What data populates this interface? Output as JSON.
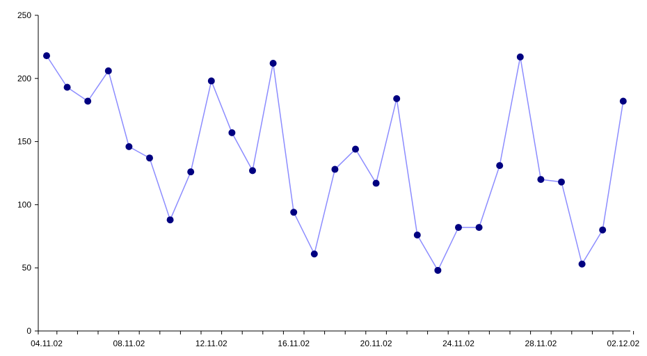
{
  "chart_data": {
    "type": "line",
    "title": "",
    "xlabel": "",
    "ylabel": "",
    "ylim": [
      0,
      250
    ],
    "yticks": [
      0,
      50,
      100,
      150,
      200,
      250
    ],
    "x": [
      "04.11.02",
      "05.11.02",
      "06.11.02",
      "07.11.02",
      "08.11.02",
      "09.11.02",
      "10.11.02",
      "11.11.02",
      "12.11.02",
      "13.11.02",
      "14.11.02",
      "15.11.02",
      "16.11.02",
      "17.11.02",
      "18.11.02",
      "19.11.02",
      "20.11.02",
      "21.11.02",
      "22.11.02",
      "23.11.02",
      "24.11.02",
      "25.11.02",
      "26.11.02",
      "27.11.02",
      "28.11.02",
      "29.11.02",
      "30.11.02",
      "01.12.02",
      "02.12.02"
    ],
    "xtick_labels": [
      "04.11.02",
      "08.11.02",
      "12.11.02",
      "16.11.02",
      "20.11.02",
      "24.11.02",
      "28.11.02",
      "02.12.02"
    ],
    "series": [
      {
        "values": [
          218,
          193,
          182,
          206,
          146,
          137,
          88,
          126,
          198,
          157,
          127,
          212,
          94,
          61,
          128,
          144,
          117,
          184,
          76,
          48,
          82,
          82,
          131,
          217,
          120,
          118,
          53,
          80,
          182
        ]
      }
    ],
    "grid": false,
    "legend": "none",
    "colors": {
      "line": "#8c8cff",
      "marker": "#000080",
      "axis": "#000000"
    }
  }
}
